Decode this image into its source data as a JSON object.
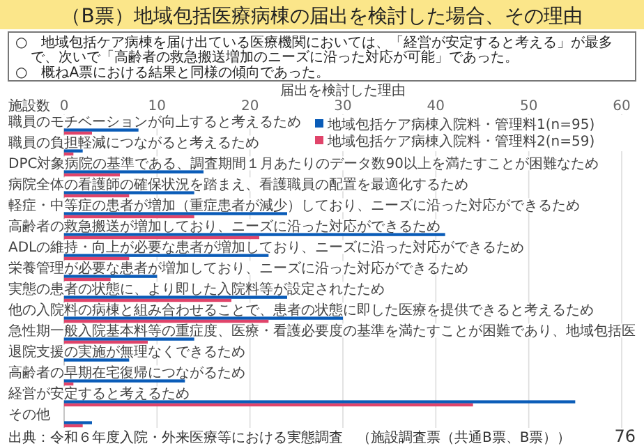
{
  "chart_data": {
    "type": "bar",
    "orientation": "horizontal",
    "title": "（B票）地域包括医療病棟の届出を検討した場合、その理由",
    "subtitle": "届出を検討した理由",
    "xlabel": "施設数",
    "categories": [
      "職員のモチベーションが向上すると考えるため",
      "職員の負担軽減につながると考えるため",
      "DPC対象病院の基準である、調査期間１月あたりのデータ数90以上を満たすことが困難なため",
      "病院全体の看護師の確保状況を踏まえ、看護職員の配置を最適化するため",
      "軽症・中等症の患者が増加（重症患者が減少）しており、ニーズに沿った対応ができるため",
      "高齢者の救急搬送が増加しており、ニーズに沿った対応ができるため",
      "ADLの維持・向上が必要な患者が増加しており、ニーズに沿った対応ができるため",
      "栄養管理が必要な患者が増加しており、ニーズに沿った対応ができるため",
      "実態の患者の状態に、より即した入院料等が設定されたため",
      "他の入院料の病棟と組み合わせることで、患者の状態に即した医療を提供できると考えるため",
      "急性期一般入院基本料等の重症度、医療・看護必要度の基準を満たすことが困難であり、地域包括医",
      "退院支援の実施が無理なくできるため",
      "高齢者の早期在宅復帰につながるため",
      "経営が安定すると考えるため",
      "その他"
    ],
    "series": [
      {
        "name": "地域包括ケア病棟入院料・管理料1(n=95)",
        "color": "#0a5cb8",
        "values": [
          8,
          2,
          15,
          14,
          24,
          41,
          22,
          10,
          24,
          30,
          14,
          7,
          13,
          55,
          3
        ]
      },
      {
        "name": "地域包括ケア病棟入院料・管理料2(n=59)",
        "color": "#e0446a",
        "values": [
          3,
          1,
          6,
          7,
          14,
          21,
          7,
          5,
          18,
          22,
          9,
          0,
          1,
          44,
          2
        ]
      }
    ],
    "xlim": [
      0,
      60
    ],
    "xticks": [
      0,
      10,
      20,
      30,
      40,
      50,
      60
    ],
    "grid": "x",
    "legend": "top right",
    "annotations": [
      "○　地域包括ケア病棟を届け出ている医療機関においては、「経営が安定すると考える」が最多で、次いで「高齢者の救急搬送増加のニーズに沿った対応が可能」であった。",
      "○　概ねA票における結果と同様の傾向であった。",
      "出典：令和６年度入院・外来医療等における実態調査　（施設調査票（共通B票、B票））",
      "76"
    ]
  }
}
